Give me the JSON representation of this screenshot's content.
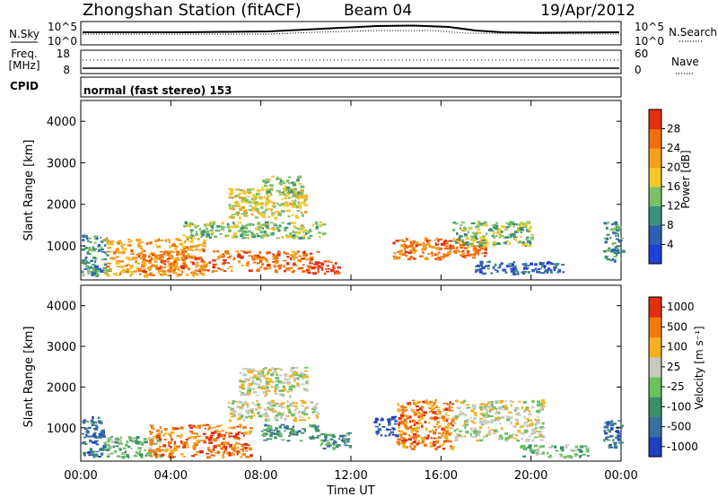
{
  "header": {
    "station": "Zhongshan Station (fitACF)",
    "beam": "Beam 04",
    "date": "19/Apr/2012"
  },
  "nsky_panel": {
    "left_label": "N.Sky",
    "right_label": "N.Search",
    "left_ticks": [
      "10^5",
      "10^0"
    ],
    "right_ticks": [
      "10^5",
      "10^0"
    ]
  },
  "freq_panel": {
    "left_label_1": "Freq.",
    "left_label_2": "[MHz]",
    "left_ticks": [
      "18",
      "8"
    ],
    "right_label": "Nave",
    "right_ticks": [
      "60",
      "0"
    ]
  },
  "cpid": {
    "label": "CPID",
    "program": "normal (fast stereo) 153"
  },
  "chart_data": [
    {
      "type": "heatmap",
      "name": "power",
      "ylabel": "Slant Range [km]",
      "ylim": [
        180,
        4500
      ],
      "yticks": [
        "1000",
        "2000",
        "3000",
        "4000"
      ],
      "xlim": [
        0,
        24
      ],
      "colorbar_label": "Power [dB]",
      "colorbar_ticks": [
        "4",
        "8",
        "12",
        "16",
        "20",
        "24",
        "28"
      ],
      "colors": [
        "#1f3fd6",
        "#2f5fb3",
        "#3c8f7a",
        "#7dc06a",
        "#f0c828",
        "#f4a020",
        "#f07010",
        "#e23010"
      ],
      "blobs": [
        {
          "start": 0.0,
          "end": 1.2,
          "range_lo": 300,
          "range_hi": 1300,
          "level": 2
        },
        {
          "start": 1.0,
          "end": 5.5,
          "range_lo": 300,
          "range_hi": 1200,
          "level": 5
        },
        {
          "start": 2.5,
          "end": 10.5,
          "range_lo": 400,
          "range_hi": 900,
          "level": 6
        },
        {
          "start": 4.5,
          "end": 10.8,
          "range_lo": 1200,
          "range_hi": 1600,
          "level": 3
        },
        {
          "start": 6.5,
          "end": 10.0,
          "range_lo": 1700,
          "range_hi": 2400,
          "level": 4
        },
        {
          "start": 8.0,
          "end": 9.8,
          "range_lo": 2300,
          "range_hi": 2700,
          "level": 3
        },
        {
          "start": 10.0,
          "end": 11.5,
          "range_lo": 350,
          "range_hi": 650,
          "level": 7
        },
        {
          "start": 13.8,
          "end": 18.0,
          "range_lo": 700,
          "range_hi": 1200,
          "level": 6
        },
        {
          "start": 16.5,
          "end": 20.0,
          "range_lo": 1000,
          "range_hi": 1600,
          "level": 3
        },
        {
          "start": 17.5,
          "end": 21.5,
          "range_lo": 350,
          "range_hi": 650,
          "level": 1
        },
        {
          "start": 23.2,
          "end": 24.0,
          "range_lo": 600,
          "range_hi": 1600,
          "level": 2
        }
      ]
    },
    {
      "type": "heatmap",
      "name": "velocity",
      "ylabel": "Slant Range [km]",
      "ylim": [
        180,
        4500
      ],
      "yticks": [
        "1000",
        "2000",
        "3000",
        "4000"
      ],
      "xlim": [
        0,
        24
      ],
      "xticks": [
        "00:00",
        "04:00",
        "08:00",
        "12:00",
        "16:00",
        "20:00",
        "00:00"
      ],
      "xlabel": "Time UT",
      "colorbar_label": "Velocity [m s⁻¹]",
      "colorbar_ticks": [
        "1000",
        "500",
        "100",
        "25",
        "-25",
        "-100",
        "-500",
        "-1000"
      ],
      "colors": [
        "#2040c0",
        "#3a70a0",
        "#3d8f6a",
        "#6cc060",
        "#c8c8c0",
        "#f5b020",
        "#f07a10",
        "#e03010"
      ],
      "blobs": [
        {
          "start": 0.0,
          "end": 1.0,
          "range_lo": 300,
          "range_hi": 1300,
          "level": 1
        },
        {
          "start": 1.0,
          "end": 3.5,
          "range_lo": 300,
          "range_hi": 800,
          "level": 3
        },
        {
          "start": 3.0,
          "end": 7.5,
          "range_lo": 300,
          "range_hi": 1100,
          "level": 6
        },
        {
          "start": 6.5,
          "end": 10.5,
          "range_lo": 1200,
          "range_hi": 1700,
          "level": 4
        },
        {
          "start": 7.0,
          "end": 10.0,
          "range_lo": 1800,
          "range_hi": 2500,
          "level": 4
        },
        {
          "start": 8.0,
          "end": 10.5,
          "range_lo": 700,
          "range_hi": 1100,
          "level": 2
        },
        {
          "start": 10.5,
          "end": 12.0,
          "range_lo": 500,
          "range_hi": 900,
          "level": 2
        },
        {
          "start": 13.0,
          "end": 14.0,
          "range_lo": 800,
          "range_hi": 1300,
          "level": 0
        },
        {
          "start": 14.0,
          "end": 16.5,
          "range_lo": 500,
          "range_hi": 1700,
          "level": 6
        },
        {
          "start": 16.5,
          "end": 20.5,
          "range_lo": 700,
          "range_hi": 1700,
          "level": 4
        },
        {
          "start": 19.5,
          "end": 22.5,
          "range_lo": 300,
          "range_hi": 600,
          "level": 3
        },
        {
          "start": 23.2,
          "end": 24.0,
          "range_lo": 500,
          "range_hi": 1200,
          "level": 1
        }
      ]
    }
  ]
}
